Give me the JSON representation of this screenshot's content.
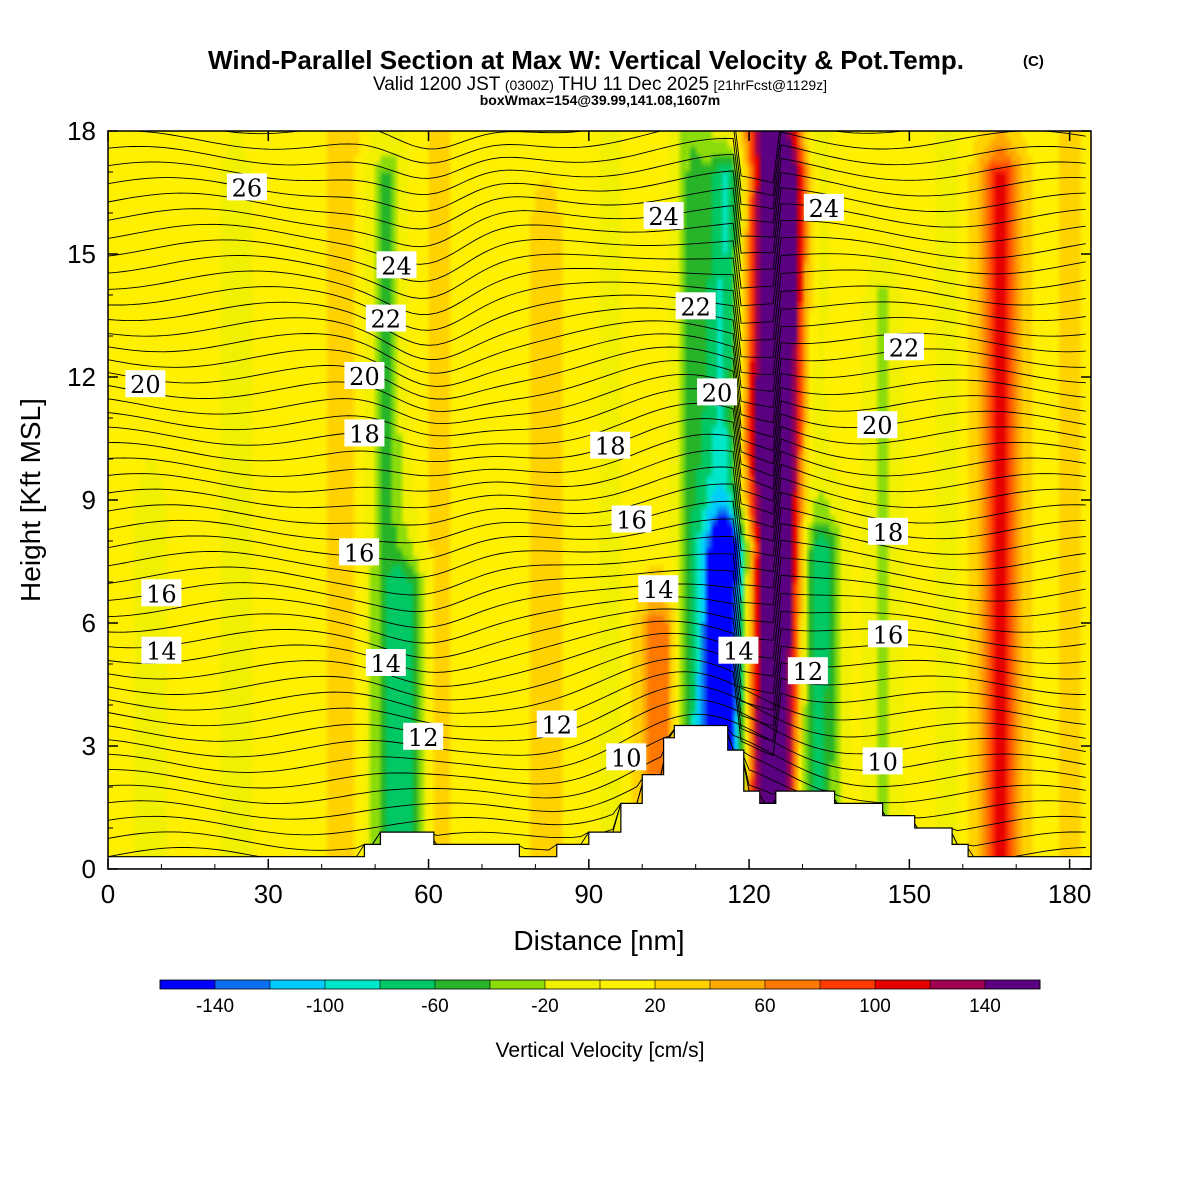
{
  "header": {
    "title": "Wind-Parallel Section at Max W: Vertical Velocity & Pot.Temp.",
    "copyright": "(C)",
    "valid_prefix": "Valid 1200 JST",
    "valid_utc": "(0300Z)",
    "valid_date": "THU 11 Dec 2025",
    "forecast_info": "[21hrFcst@1129z]",
    "box_info": "boxWmax=154@39.99,141.08,1607m"
  },
  "chart_data": {
    "type": "heatmap",
    "xlabel": "Distance [nm]",
    "ylabel": "Height [Kft MSL]",
    "xlim": [
      0,
      184
    ],
    "ylim": [
      0,
      18
    ],
    "x_ticks": [
      "0",
      "30",
      "60",
      "90",
      "120",
      "150",
      "180"
    ],
    "y_ticks": [
      "0",
      "3",
      "6",
      "9",
      "12",
      "15",
      "18"
    ],
    "x_tick_values": [
      0,
      30,
      60,
      90,
      120,
      150,
      180
    ],
    "y_tick_values": [
      0,
      3,
      6,
      9,
      12,
      15,
      18
    ],
    "colorbar": {
      "title": "Vertical Velocity [cm/s]",
      "levels": [
        -160,
        -140,
        -120,
        -100,
        -80,
        -60,
        -40,
        -20,
        0,
        20,
        40,
        60,
        80,
        100,
        120,
        140,
        160
      ],
      "colors": [
        "#0000ff",
        "#0a6ef0",
        "#00ccff",
        "#00e6c8",
        "#00c864",
        "#28b428",
        "#8cdc0a",
        "#f0f000",
        "#fff000",
        "#ffd200",
        "#ffaa00",
        "#ff7800",
        "#ff3c00",
        "#e60000",
        "#a00050",
        "#5a0080"
      ],
      "tick_labels": [
        "-140",
        "-100",
        "-60",
        "-20",
        "20",
        "60",
        "100",
        "140"
      ],
      "tick_values": [
        -140,
        -100,
        -60,
        -20,
        20,
        60,
        100,
        140
      ]
    },
    "vertical_velocity_bands": [
      {
        "x": 0,
        "w": -5,
        "ztop": 18
      },
      {
        "x": 8,
        "w": -25,
        "ztop": 9
      },
      {
        "x": 24,
        "w": -25,
        "ztop": 17
      },
      {
        "x": 44,
        "w": 30,
        "ztop": 18
      },
      {
        "x": 52,
        "w": -50,
        "ztop": 17
      },
      {
        "x": 56,
        "w": -70,
        "ztop": 7
      },
      {
        "x": 62,
        "w": 25,
        "ztop": 18
      },
      {
        "x": 70,
        "w": 5,
        "ztop": 18
      },
      {
        "x": 82,
        "w": 30,
        "ztop": 16
      },
      {
        "x": 94,
        "w": -20,
        "ztop": 18
      },
      {
        "x": 103,
        "w": 70,
        "ztop": 6
      },
      {
        "x": 109,
        "w": -45,
        "ztop": 18
      },
      {
        "x": 115,
        "w": -100,
        "ztop": 17
      },
      {
        "x": 117,
        "w": -140,
        "ztop": 8
      },
      {
        "x": 123,
        "w": 150,
        "ztop": 18
      },
      {
        "x": 127,
        "w": 95,
        "ztop": 17
      },
      {
        "x": 131,
        "w": -40,
        "ztop": 18
      },
      {
        "x": 134,
        "w": -70,
        "ztop": 8
      },
      {
        "x": 145,
        "w": -35,
        "ztop": 14
      },
      {
        "x": 157,
        "w": -15,
        "ztop": 18
      },
      {
        "x": 167,
        "w": 100,
        "ztop": 17
      },
      {
        "x": 180,
        "w": 25,
        "ztop": 18
      }
    ],
    "terrain": {
      "x": [
        0,
        48,
        48,
        51,
        51,
        61,
        61,
        62,
        62,
        65,
        65,
        77,
        77,
        84,
        84,
        90,
        90,
        96,
        96,
        100,
        100,
        104,
        104,
        106,
        106,
        112,
        112,
        116,
        116,
        119,
        119,
        122,
        122,
        125,
        125,
        129,
        129,
        136,
        136,
        145,
        145,
        151,
        151,
        158,
        158,
        161,
        161,
        184
      ],
      "height": [
        0.3,
        0.3,
        0.6,
        0.6,
        0.9,
        0.9,
        0.6,
        0.6,
        0.6,
        0.6,
        0.6,
        0.6,
        0.3,
        0.3,
        0.6,
        0.6,
        0.9,
        0.9,
        1.6,
        1.6,
        2.3,
        2.3,
        3.2,
        3.2,
        3.5,
        3.5,
        3.5,
        3.5,
        2.9,
        2.9,
        1.9,
        1.9,
        1.6,
        1.6,
        1.9,
        1.9,
        1.9,
        1.9,
        1.6,
        1.6,
        1.3,
        1.3,
        1.0,
        1.0,
        0.6,
        0.6,
        0.3,
        0.3
      ]
    },
    "theta_contour_labels": [
      {
        "text": "26",
        "x": 26,
        "z": 16.6
      },
      {
        "text": "24",
        "x": 54,
        "z": 14.7
      },
      {
        "text": "22",
        "x": 52,
        "z": 13.4
      },
      {
        "text": "20",
        "x": 48,
        "z": 12.0
      },
      {
        "text": "18",
        "x": 48,
        "z": 10.6
      },
      {
        "text": "20",
        "x": 7,
        "z": 11.8
      },
      {
        "text": "16",
        "x": 47,
        "z": 7.7
      },
      {
        "text": "16",
        "x": 10,
        "z": 6.7
      },
      {
        "text": "14",
        "x": 10,
        "z": 5.3
      },
      {
        "text": "14",
        "x": 52,
        "z": 5.0
      },
      {
        "text": "12",
        "x": 59,
        "z": 3.2
      },
      {
        "text": "12",
        "x": 84,
        "z": 3.5
      },
      {
        "text": "10",
        "x": 97,
        "z": 2.7
      },
      {
        "text": "18",
        "x": 94,
        "z": 10.3
      },
      {
        "text": "16",
        "x": 98,
        "z": 8.5
      },
      {
        "text": "14",
        "x": 103,
        "z": 6.8
      },
      {
        "text": "24",
        "x": 104,
        "z": 15.9
      },
      {
        "text": "22",
        "x": 110,
        "z": 13.7
      },
      {
        "text": "20",
        "x": 114,
        "z": 11.6
      },
      {
        "text": "14",
        "x": 118,
        "z": 5.3
      },
      {
        "text": "12",
        "x": 131,
        "z": 4.8
      },
      {
        "text": "24",
        "x": 134,
        "z": 16.1
      },
      {
        "text": "22",
        "x": 149,
        "z": 12.7
      },
      {
        "text": "20",
        "x": 144,
        "z": 10.8
      },
      {
        "text": "18",
        "x": 146,
        "z": 8.2
      },
      {
        "text": "16",
        "x": 146,
        "z": 5.7
      },
      {
        "text": "10",
        "x": 145,
        "z": 2.6
      }
    ]
  }
}
